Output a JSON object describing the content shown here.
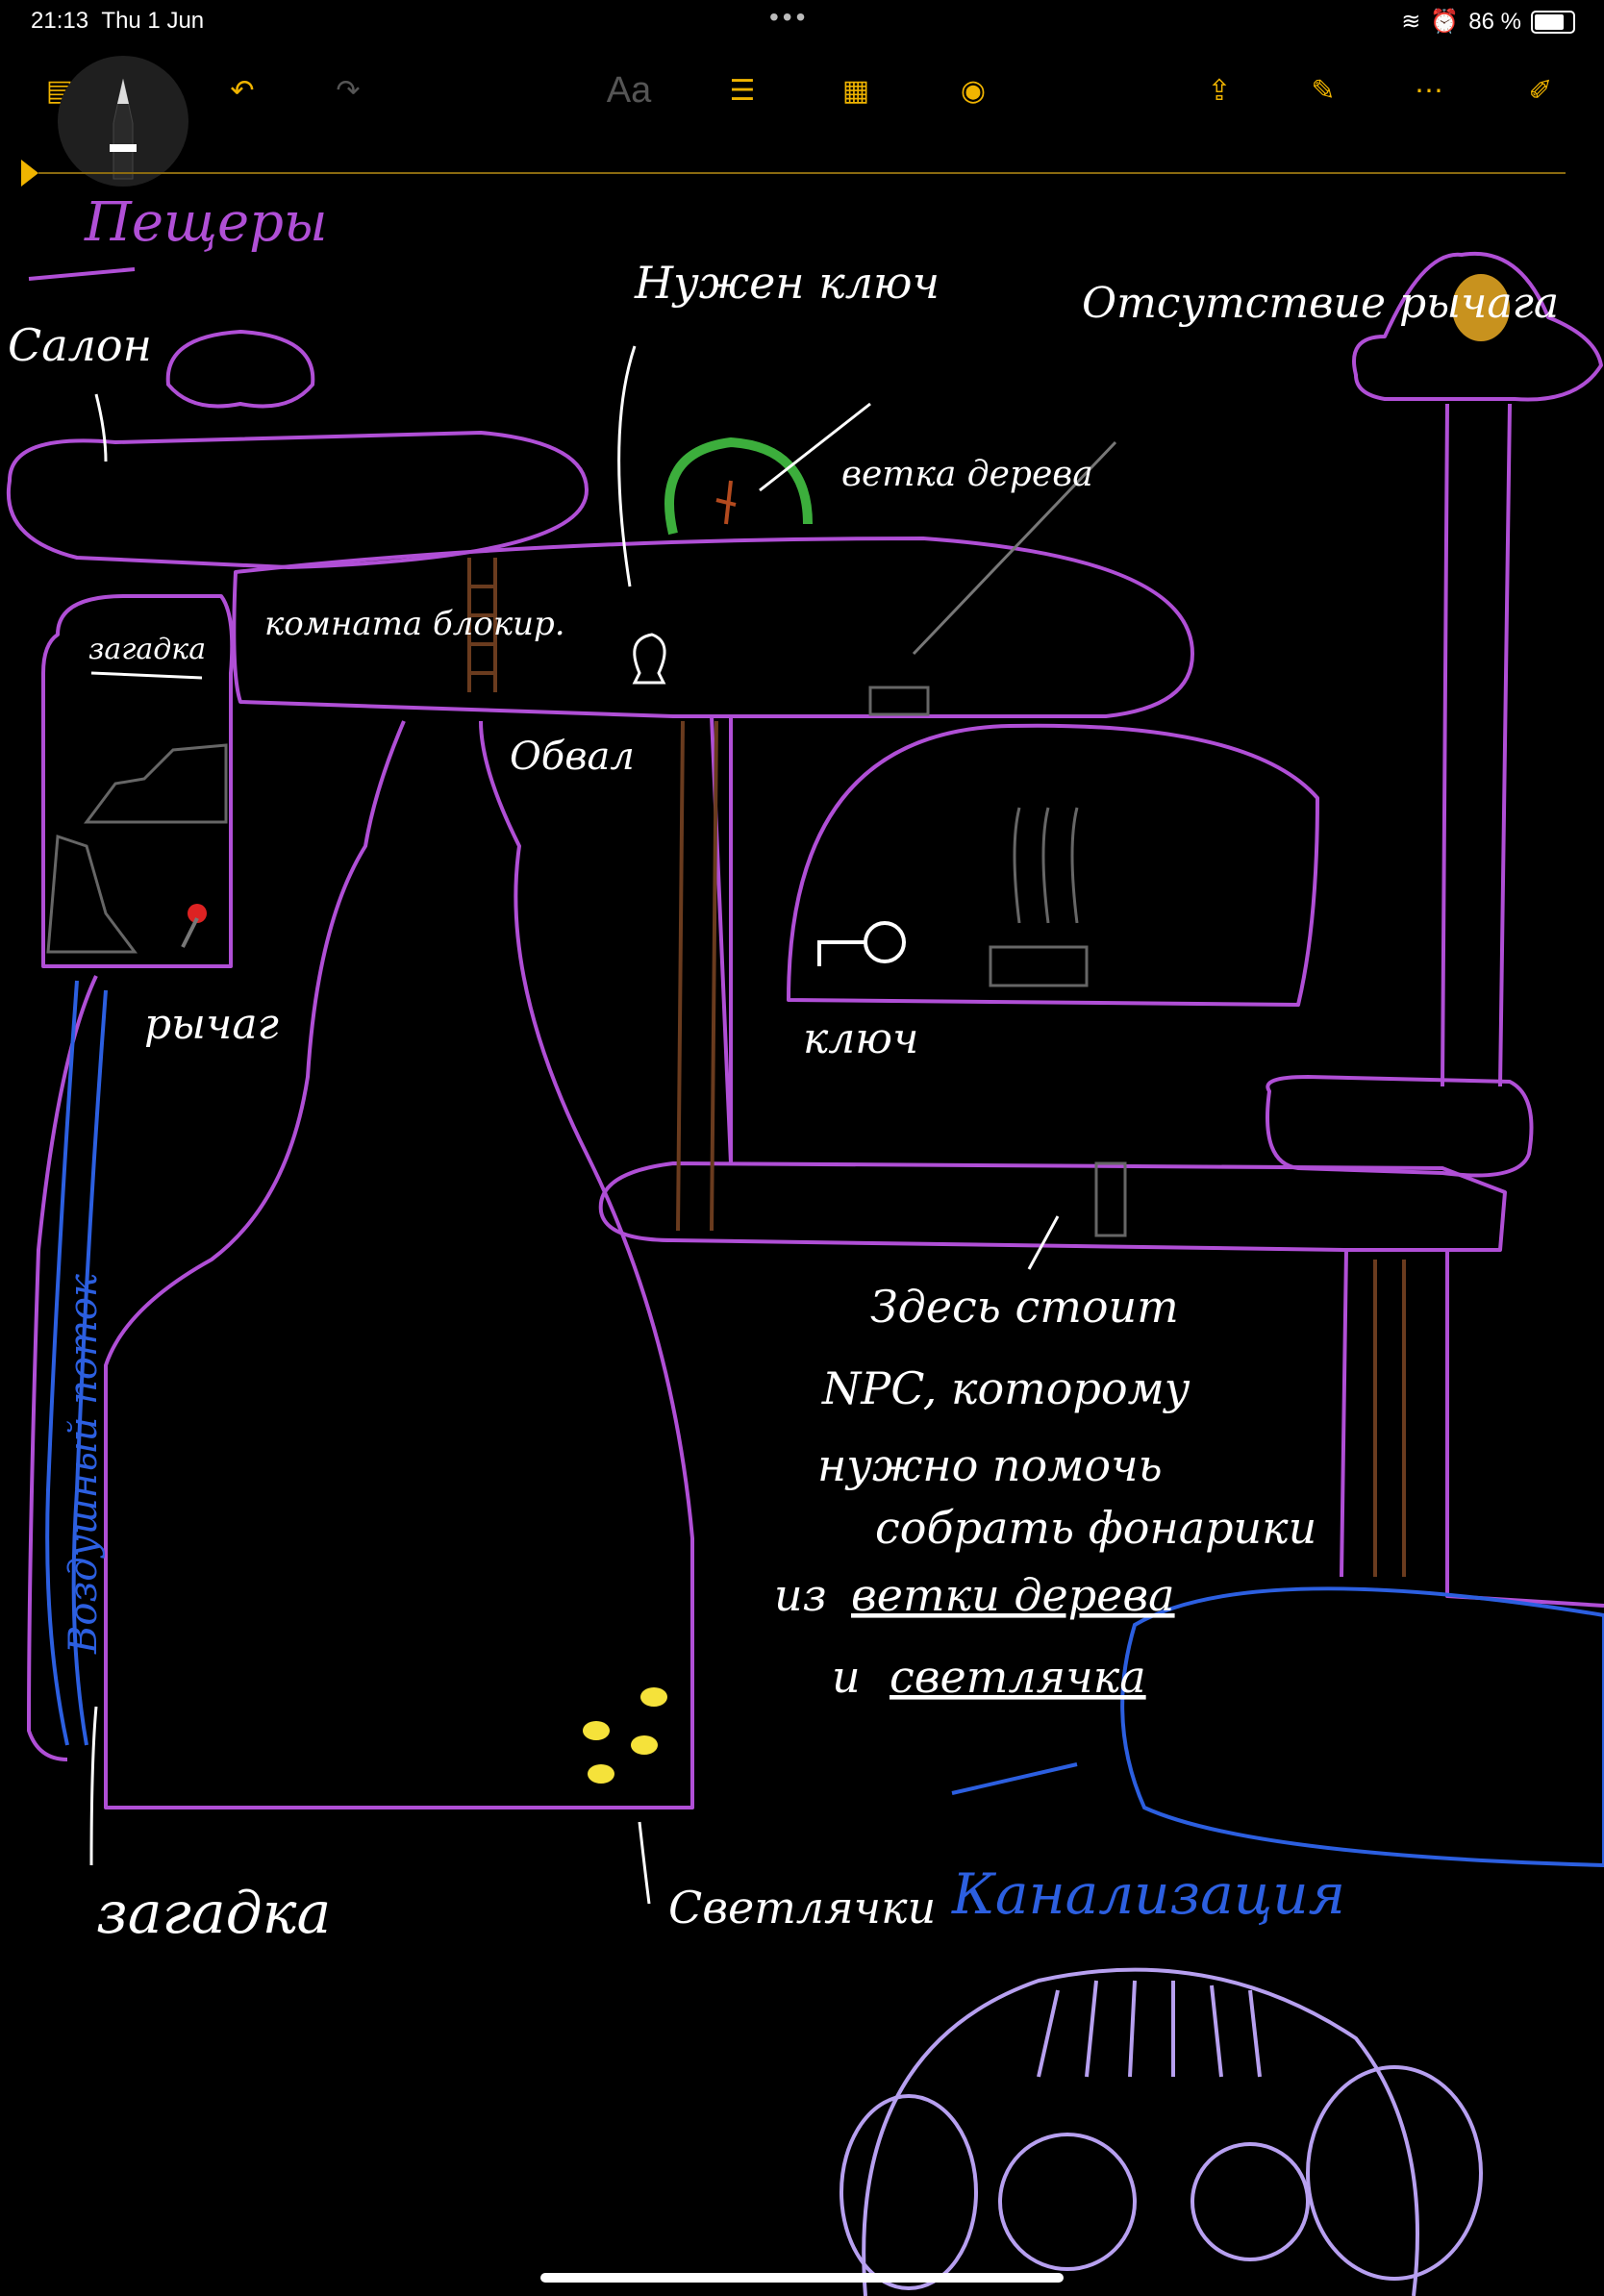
{
  "status": {
    "time": "21:13",
    "date": "Thu 1 Jun",
    "battery": "86 %"
  },
  "toolbar": {
    "format_label": "Aa",
    "icons": [
      "sidebar-icon",
      "undo-icon",
      "redo-icon",
      "format-icon",
      "checklist-icon",
      "table-icon",
      "camera-icon",
      "share-icon",
      "markup-icon",
      "more-icon",
      "compose-icon"
    ]
  },
  "note": {
    "title": "Пещеры",
    "labels": {
      "salon": "Салон",
      "need_key": "Нужен ключ",
      "no_lever": "Отсутствие рычага",
      "branch": "ветка дерева",
      "riddle_top": "загадка",
      "locked_room": "комната блокир.",
      "collapse": "Обвал",
      "lever": "рычаг",
      "key": "ключ",
      "air_stream": "Воздушный поток",
      "npc_line1": "Здесь стоит",
      "npc_line2": "NPC, которому",
      "npc_line3": "нужно помочь",
      "npc_line4": "собрать фонарики",
      "npc_line5a": "из",
      "npc_line5b": "ветки дерева",
      "npc_line6a": "и",
      "npc_line6b": "светлячка",
      "riddle_bottom": "загадка",
      "fireflies": "Светлячки",
      "sewer": "Канализация"
    }
  },
  "colors": {
    "accent": "#f0b400",
    "cave": "#b04fd6",
    "blue": "#2c5fe0",
    "green": "#3cae3c",
    "ladder": "#6a3b1e",
    "face": "#b7a0f0"
  }
}
